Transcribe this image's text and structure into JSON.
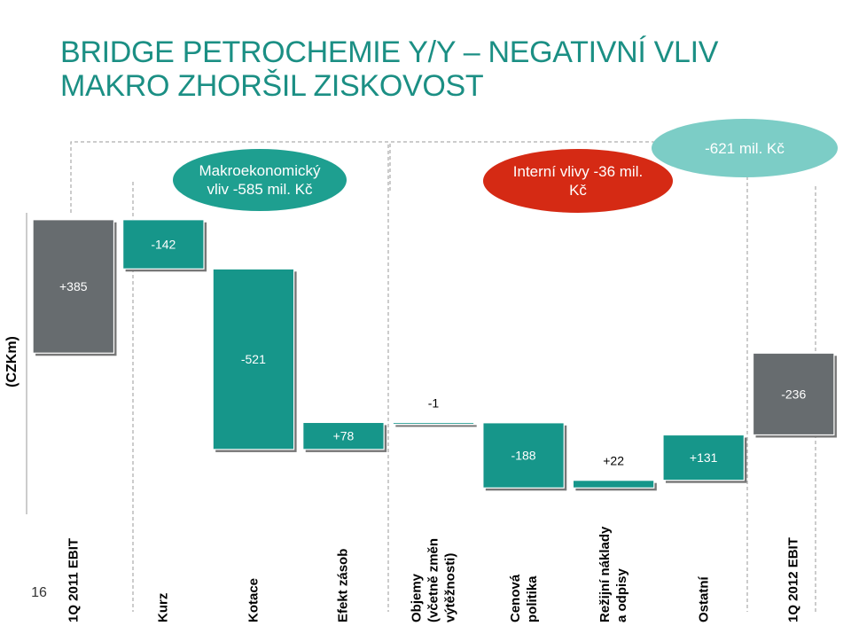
{
  "slide_number": "16",
  "chart_data": {
    "type": "waterfall",
    "title": "BRIDGE PETROCHEMIE Y/Y – NEGATIVNÍ VLIV MAKRO ZHORŠIL ZISKOVOST",
    "y_label": "(CZKm)",
    "categories": [
      "1Q 2011 EBIT",
      "Kurz",
      "Kotace",
      "Efekt zásob",
      "Objemy (včetně změn výtěžnosti)",
      "Cenová politika",
      "Režijní náklady a odpisy",
      "Ostatní",
      "1Q 2012 EBIT"
    ],
    "values": [
      385,
      -142,
      -521,
      78,
      -1,
      -188,
      22,
      131,
      -236
    ],
    "value_labels": [
      "+385",
      "-142",
      "-521",
      "+78",
      "-1",
      "-188",
      "+22",
      "+131",
      "-236"
    ],
    "colors": [
      "#676c6f",
      "#16968a",
      "#16968a",
      "#16968a",
      "#16968a",
      "#16968a",
      "#16968a",
      "#16968a",
      "#676c6f"
    ],
    "ylim": [
      -465,
      410
    ],
    "annotations": [
      {
        "text": "Makroekonomický vliv -585 mil. Kč",
        "color": "#1e9f90"
      },
      {
        "text": "Interní vlivy -36 mil. Kč",
        "color": "#d52a14"
      },
      {
        "text": "-621 mil. Kč",
        "color": "#7ccdc6"
      }
    ]
  }
}
